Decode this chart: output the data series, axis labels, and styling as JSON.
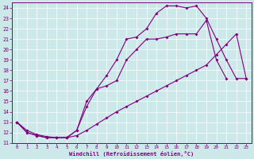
{
  "xlabel": "Windchill (Refroidissement éolien,°C)",
  "bg_color": "#cce8e8",
  "line_color": "#800080",
  "xlim": [
    -0.5,
    23.5
  ],
  "ylim": [
    11,
    24.5
  ],
  "xticks": [
    0,
    1,
    2,
    3,
    4,
    5,
    6,
    7,
    8,
    9,
    10,
    11,
    12,
    13,
    14,
    15,
    16,
    17,
    18,
    19,
    20,
    21,
    22,
    23
  ],
  "yticks": [
    11,
    12,
    13,
    14,
    15,
    16,
    17,
    18,
    19,
    20,
    21,
    22,
    23,
    24
  ],
  "line1_x": [
    0,
    1,
    2,
    3,
    4,
    5,
    6,
    7,
    8,
    9,
    10,
    11,
    12,
    13,
    14,
    15,
    16,
    17,
    18,
    19,
    20,
    21,
    22,
    23
  ],
  "line1_y": [
    13,
    12,
    11.7,
    11.5,
    11.5,
    11.5,
    12.2,
    14.5,
    16.2,
    17.5,
    19.0,
    21.0,
    21.2,
    22.0,
    23.5,
    24.2,
    24.2,
    24.0,
    24.2,
    23.0,
    21.0,
    19.0,
    17.2,
    17.2
  ],
  "line2_x": [
    0,
    1,
    2,
    3,
    4,
    5,
    6,
    7,
    8,
    9,
    10,
    11,
    12,
    13,
    14,
    15,
    16,
    17,
    18,
    19,
    20,
    21
  ],
  "line2_y": [
    13,
    12,
    11.7,
    11.5,
    11.5,
    11.5,
    12.2,
    15.0,
    16.2,
    16.5,
    17.0,
    19.0,
    20.0,
    21.0,
    21.0,
    21.2,
    21.5,
    21.5,
    21.5,
    22.8,
    19.0,
    17.2
  ],
  "line3_x": [
    0,
    1,
    2,
    3,
    4,
    5,
    6,
    7,
    8,
    9,
    10,
    11,
    12,
    13,
    14,
    15,
    16,
    17,
    18,
    19,
    20,
    21,
    22,
    23
  ],
  "line3_y": [
    13,
    12.2,
    11.8,
    11.6,
    11.5,
    11.5,
    11.7,
    12.2,
    12.8,
    13.4,
    14.0,
    14.5,
    15.0,
    15.5,
    16.0,
    16.5,
    17.0,
    17.5,
    18.0,
    18.5,
    19.5,
    20.5,
    21.5,
    17.2
  ]
}
